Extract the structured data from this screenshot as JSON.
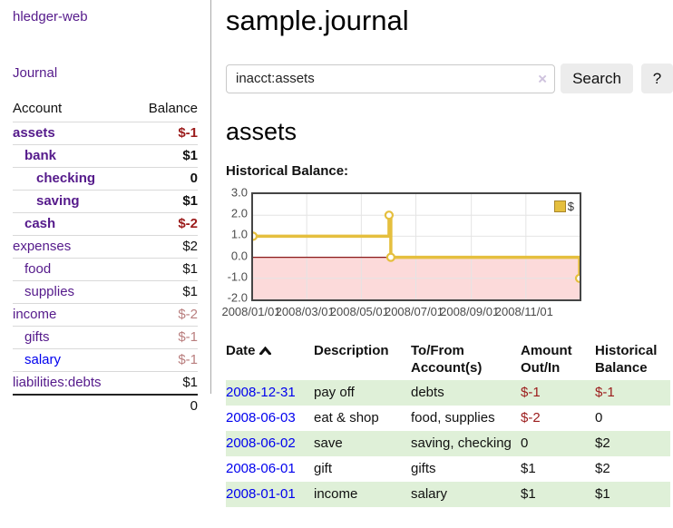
{
  "app": {
    "title": "hledger-web"
  },
  "nav": {
    "journal": "Journal"
  },
  "sidebar": {
    "accounts": {
      "col_account": "Account",
      "col_balance": "Balance",
      "rows": [
        {
          "name": "assets",
          "balance": "$-1"
        },
        {
          "name": "bank",
          "balance": "$1"
        },
        {
          "name": "checking",
          "balance": "0"
        },
        {
          "name": "saving",
          "balance": "$1"
        },
        {
          "name": "cash",
          "balance": "$-2"
        },
        {
          "name": "expenses",
          "balance": "$2"
        },
        {
          "name": "food",
          "balance": "$1"
        },
        {
          "name": "supplies",
          "balance": "$1"
        },
        {
          "name": "income",
          "balance": "$-2"
        },
        {
          "name": "gifts",
          "balance": "$-1"
        },
        {
          "name": "salary",
          "balance": "$-1"
        },
        {
          "name": "liabilities:debts",
          "balance": "$1"
        }
      ],
      "total": "0"
    }
  },
  "header": {
    "title": "sample.journal"
  },
  "search": {
    "value": "inacct:assets",
    "clear_icon": "×",
    "button_label": "Search",
    "help_label": "?"
  },
  "account_page": {
    "heading": "assets",
    "chart_title": "Historical Balance:"
  },
  "chart_data": {
    "type": "line",
    "title": "Historical Balance:",
    "line_style": "step-after",
    "x_range": [
      "2008/01/01",
      "2008/12/31"
    ],
    "y_range": [
      -2,
      3
    ],
    "x_ticks": [
      "2008/01/01",
      "2008/03/01",
      "2008/05/01",
      "2008/07/01",
      "2008/09/01",
      "2008/11/01"
    ],
    "y_ticks": [
      "3.0",
      "2.0",
      "1.0",
      "0.0",
      "-1.0",
      "-2.0"
    ],
    "series": [
      {
        "name": "$",
        "color": "#e5bf3e",
        "points": [
          [
            "2008/01/01",
            1
          ],
          [
            "2008/06/01",
            2
          ],
          [
            "2008/06/03",
            0
          ],
          [
            "2008/12/31",
            -1
          ]
        ]
      }
    ],
    "negative_region": {
      "below": 0,
      "fill": "#fcdada",
      "edge": "#8b1a1a"
    },
    "legend": {
      "label": "$",
      "position": "top-right"
    }
  },
  "register": {
    "columns": {
      "date": "Date",
      "description": "Description",
      "accounts": "To/From Account(s)",
      "amount": "Amount Out/In",
      "balance": "Historical Balance"
    },
    "rows": [
      {
        "date": "2008-12-31",
        "description": "pay off",
        "accounts": "debts",
        "amount": "$-1",
        "balance": "$-1"
      },
      {
        "date": "2008-06-03",
        "description": "eat & shop",
        "accounts": "food, supplies",
        "amount": "$-2",
        "balance": "0"
      },
      {
        "date": "2008-06-02",
        "description": "save",
        "accounts": "saving, checking",
        "amount": "0",
        "balance": "$2"
      },
      {
        "date": "2008-06-01",
        "description": "gift",
        "accounts": "gifts",
        "amount": "$1",
        "balance": "$2"
      },
      {
        "date": "2008-01-01",
        "description": "income",
        "accounts": "salary",
        "amount": "$1",
        "balance": "$1"
      }
    ]
  }
}
